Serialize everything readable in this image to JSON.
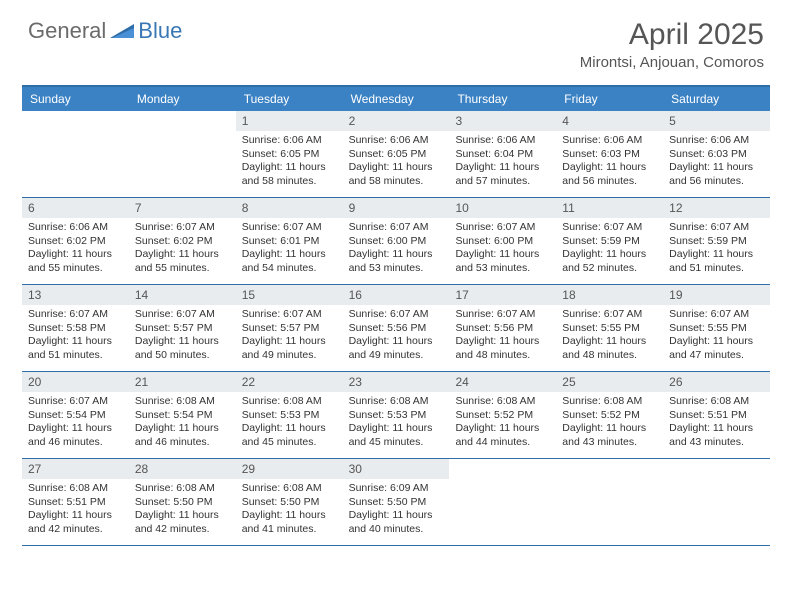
{
  "logo": {
    "part1": "General",
    "part2": "Blue"
  },
  "title": "April 2025",
  "location": "Mirontsi, Anjouan, Comoros",
  "colors": {
    "header_bg": "#3b82c4",
    "header_text": "#ffffff",
    "border": "#2f6da8",
    "daynum_bg": "#e9ecef",
    "logo_gray": "#6b6b6b",
    "logo_blue": "#3a78b5",
    "text": "#333333",
    "title_text": "#565656"
  },
  "weekdays": [
    "Sunday",
    "Monday",
    "Tuesday",
    "Wednesday",
    "Thursday",
    "Friday",
    "Saturday"
  ],
  "weeks": [
    [
      {
        "n": "",
        "sr": "",
        "ss": "",
        "dl": ""
      },
      {
        "n": "",
        "sr": "",
        "ss": "",
        "dl": ""
      },
      {
        "n": "1",
        "sr": "6:06 AM",
        "ss": "6:05 PM",
        "dl": "11 hours and 58 minutes."
      },
      {
        "n": "2",
        "sr": "6:06 AM",
        "ss": "6:05 PM",
        "dl": "11 hours and 58 minutes."
      },
      {
        "n": "3",
        "sr": "6:06 AM",
        "ss": "6:04 PM",
        "dl": "11 hours and 57 minutes."
      },
      {
        "n": "4",
        "sr": "6:06 AM",
        "ss": "6:03 PM",
        "dl": "11 hours and 56 minutes."
      },
      {
        "n": "5",
        "sr": "6:06 AM",
        "ss": "6:03 PM",
        "dl": "11 hours and 56 minutes."
      }
    ],
    [
      {
        "n": "6",
        "sr": "6:06 AM",
        "ss": "6:02 PM",
        "dl": "11 hours and 55 minutes."
      },
      {
        "n": "7",
        "sr": "6:07 AM",
        "ss": "6:02 PM",
        "dl": "11 hours and 55 minutes."
      },
      {
        "n": "8",
        "sr": "6:07 AM",
        "ss": "6:01 PM",
        "dl": "11 hours and 54 minutes."
      },
      {
        "n": "9",
        "sr": "6:07 AM",
        "ss": "6:00 PM",
        "dl": "11 hours and 53 minutes."
      },
      {
        "n": "10",
        "sr": "6:07 AM",
        "ss": "6:00 PM",
        "dl": "11 hours and 53 minutes."
      },
      {
        "n": "11",
        "sr": "6:07 AM",
        "ss": "5:59 PM",
        "dl": "11 hours and 52 minutes."
      },
      {
        "n": "12",
        "sr": "6:07 AM",
        "ss": "5:59 PM",
        "dl": "11 hours and 51 minutes."
      }
    ],
    [
      {
        "n": "13",
        "sr": "6:07 AM",
        "ss": "5:58 PM",
        "dl": "11 hours and 51 minutes."
      },
      {
        "n": "14",
        "sr": "6:07 AM",
        "ss": "5:57 PM",
        "dl": "11 hours and 50 minutes."
      },
      {
        "n": "15",
        "sr": "6:07 AM",
        "ss": "5:57 PM",
        "dl": "11 hours and 49 minutes."
      },
      {
        "n": "16",
        "sr": "6:07 AM",
        "ss": "5:56 PM",
        "dl": "11 hours and 49 minutes."
      },
      {
        "n": "17",
        "sr": "6:07 AM",
        "ss": "5:56 PM",
        "dl": "11 hours and 48 minutes."
      },
      {
        "n": "18",
        "sr": "6:07 AM",
        "ss": "5:55 PM",
        "dl": "11 hours and 48 minutes."
      },
      {
        "n": "19",
        "sr": "6:07 AM",
        "ss": "5:55 PM",
        "dl": "11 hours and 47 minutes."
      }
    ],
    [
      {
        "n": "20",
        "sr": "6:07 AM",
        "ss": "5:54 PM",
        "dl": "11 hours and 46 minutes."
      },
      {
        "n": "21",
        "sr": "6:08 AM",
        "ss": "5:54 PM",
        "dl": "11 hours and 46 minutes."
      },
      {
        "n": "22",
        "sr": "6:08 AM",
        "ss": "5:53 PM",
        "dl": "11 hours and 45 minutes."
      },
      {
        "n": "23",
        "sr": "6:08 AM",
        "ss": "5:53 PM",
        "dl": "11 hours and 45 minutes."
      },
      {
        "n": "24",
        "sr": "6:08 AM",
        "ss": "5:52 PM",
        "dl": "11 hours and 44 minutes."
      },
      {
        "n": "25",
        "sr": "6:08 AM",
        "ss": "5:52 PM",
        "dl": "11 hours and 43 minutes."
      },
      {
        "n": "26",
        "sr": "6:08 AM",
        "ss": "5:51 PM",
        "dl": "11 hours and 43 minutes."
      }
    ],
    [
      {
        "n": "27",
        "sr": "6:08 AM",
        "ss": "5:51 PM",
        "dl": "11 hours and 42 minutes."
      },
      {
        "n": "28",
        "sr": "6:08 AM",
        "ss": "5:50 PM",
        "dl": "11 hours and 42 minutes."
      },
      {
        "n": "29",
        "sr": "6:08 AM",
        "ss": "5:50 PM",
        "dl": "11 hours and 41 minutes."
      },
      {
        "n": "30",
        "sr": "6:09 AM",
        "ss": "5:50 PM",
        "dl": "11 hours and 40 minutes."
      },
      {
        "n": "",
        "sr": "",
        "ss": "",
        "dl": ""
      },
      {
        "n": "",
        "sr": "",
        "ss": "",
        "dl": ""
      },
      {
        "n": "",
        "sr": "",
        "ss": "",
        "dl": ""
      }
    ]
  ],
  "labels": {
    "sunrise": "Sunrise:",
    "sunset": "Sunset:",
    "daylight": "Daylight:"
  }
}
